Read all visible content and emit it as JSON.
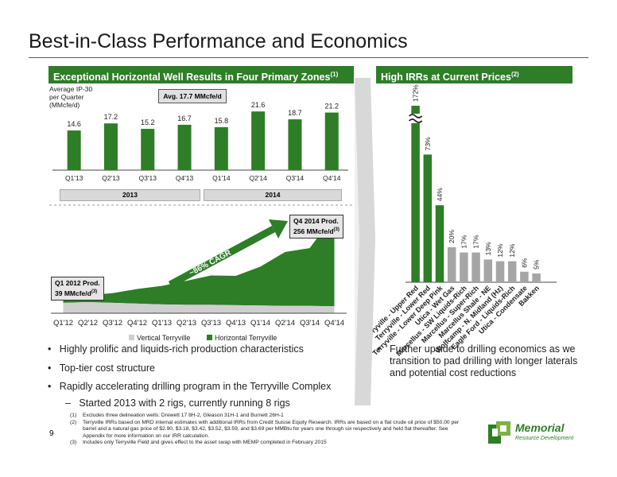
{
  "title": "Best-in-Class Performance and Economics",
  "left_panel": {
    "header": "Exceptional Horizontal Well Results in Four Primary Zones",
    "header_sup": "(1)",
    "y_note": [
      "Average IP-30",
      "per Quarter",
      "(MMcfe/d)"
    ],
    "avg_label": "Avg. 17.7 MMcfe/d",
    "years": [
      "2013",
      "2014"
    ]
  },
  "right_panel": {
    "header": "High IRRs at Current Prices",
    "header_sup": "(2)"
  },
  "callouts": {
    "q1_line1": "Q1 2012 Prod.",
    "q1_line2": "39 MMcfe/d",
    "q1_sup": "(3)",
    "q4_line1": "Q4 2014 Prod.",
    "q4_line2": "256 MMcfe/d",
    "q4_sup": "(3)",
    "cagr": "~86% CAGR"
  },
  "bullets_left": [
    "Highly prolific and liquids-rich production characteristics",
    "Top-tier cost structure",
    "Rapidly accelerating drilling program in the Terryville Complex"
  ],
  "sub_bullet": "Started 2013 with 2 rigs, currently running 8 rigs",
  "bullets_right": [
    "Further upside to drilling economics as we",
    "transition to pad drilling with longer laterals",
    "and potential cost reductions"
  ],
  "footnotes": [
    {
      "num": "(1)",
      "text": "Excludes three delineation wells: Drewett 17 8H-2, Gleason 31H-1 and Burnett 26H-1"
    },
    {
      "num": "(2)",
      "text": "Terryville IRRs based on MRD internal estimates with additional IRRs from Credit Suisse Equity Research. IRRs are based on a flat crude oil price of $50.00 per"
    },
    {
      "num": "",
      "text": "barrel and a natural gas price of $2.90, $3.18, $3.42, $3.52, $3.59, and $3.69 per MMBtu for years one through six respectively and held flat thereafter. See"
    },
    {
      "num": "",
      "text": "Appendix for more information on our IRR calculation."
    },
    {
      "num": "(3)",
      "text": "Includes only Terryville Field and gives effect to the asset swap with MEMP completed in February 2015"
    }
  ],
  "page_number": "9",
  "logo": {
    "name": "Memorial",
    "sub": "Resource Development"
  },
  "colors": {
    "green": "#2e7d27",
    "gray": "#a6a6a6",
    "dark_gray": "#5a5a5a"
  },
  "chart_data": [
    {
      "type": "bar",
      "categories": [
        "Q1'13",
        "Q2'13",
        "Q3'13",
        "Q4'13",
        "Q1'14",
        "Q2'14",
        "Q3'14",
        "Q4'14"
      ],
      "values": [
        14.6,
        17.2,
        15.2,
        16.7,
        15.8,
        21.6,
        18.7,
        21.2
      ],
      "labels": [
        "14.6",
        "17.2",
        "15.2",
        "16.7",
        "15.8",
        "21.6",
        "18.7",
        "21.2"
      ],
      "ylim": [
        0,
        24
      ]
    },
    {
      "type": "area",
      "categories": [
        "Q1'12",
        "Q2'12",
        "Q3'12",
        "Q4'12",
        "Q1'13",
        "Q2'13",
        "Q3'13",
        "Q4'13",
        "Q1'14",
        "Q2'14",
        "Q3'14",
        "Q4'14"
      ],
      "series": [
        {
          "name": "Vertical Terryville",
          "values": [
            27,
            29,
            27,
            25,
            23,
            22,
            22,
            21,
            20,
            19,
            19,
            18
          ]
        },
        {
          "name": "Horizontal Terryville",
          "values": [
            12,
            18,
            25,
            38,
            48,
            62,
            76,
            76,
            101,
            140,
            150,
            238
          ]
        }
      ],
      "ylim": [
        0,
        260
      ],
      "stacked": true,
      "legend_position": "bottom"
    },
    {
      "type": "bar",
      "categories": [
        "Terryville - Upper Red",
        "Terryville - Lower Red",
        "Terryville - Lower Deep Pink",
        "Utica - Wet Gas",
        "Marcellus - SW Liquids-Rich",
        "Marcellus - Super-Rich",
        "Marcellus Shale - NE",
        "Wolfcamp - N. Midland (Hz)",
        "Eagle Ford - Liquids-Rich",
        "Utica - Condensate",
        "Bakken"
      ],
      "values": [
        172,
        73,
        44,
        20,
        17,
        17,
        13,
        12,
        12,
        6,
        5
      ],
      "labels": [
        "172%",
        "73%",
        "44%",
        "20%",
        "17%",
        "17%",
        "13%",
        "12%",
        "12%",
        "6%",
        "5%"
      ],
      "axis_break": true
    }
  ]
}
